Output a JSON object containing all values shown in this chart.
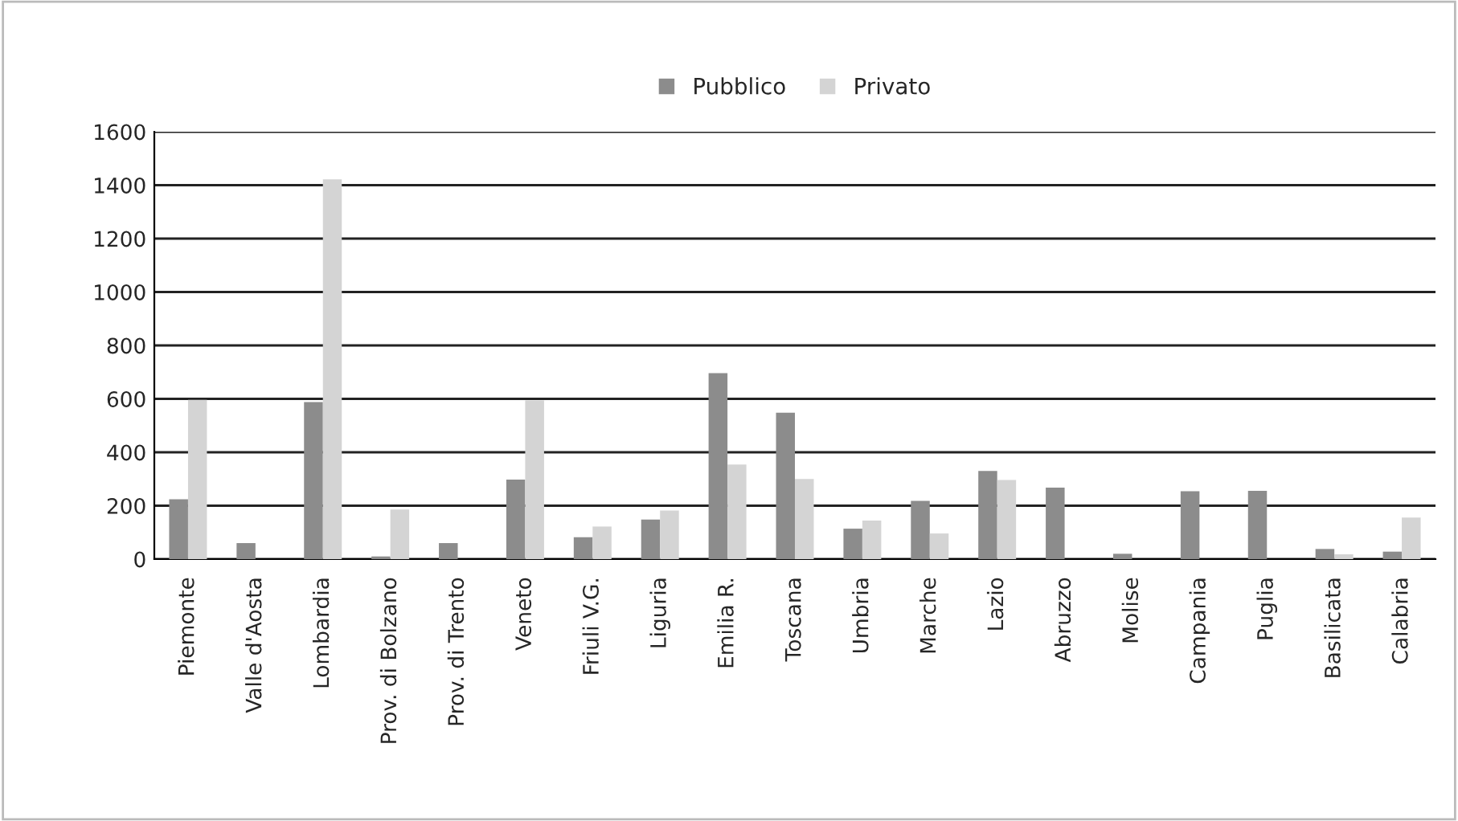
{
  "chart_data": {
    "type": "bar",
    "categories": [
      "Piemonte",
      "Valle d'Aosta",
      "Lombardia",
      "Prov. di Bolzano",
      "Prov. di Trento",
      "Veneto",
      "Friuli V.G.",
      "Liguria",
      "Emilia R.",
      "Toscana",
      "Umbria",
      "Marche",
      "Lazio",
      "Abruzzo",
      "Molise",
      "Campania",
      "Puglia",
      "Basilicata",
      "Calabria"
    ],
    "series": [
      {
        "name": "Pubblico",
        "color": "#8c8c8c",
        "values": [
          224,
          60,
          588,
          10,
          60,
          298,
          82,
          148,
          696,
          548,
          114,
          218,
          330,
          268,
          20,
          254,
          256,
          38,
          28
        ]
      },
      {
        "name": "Privato",
        "color": "#d4d4d4",
        "values": [
          596,
          null,
          1422,
          186,
          null,
          594,
          122,
          182,
          354,
          300,
          144,
          96,
          296,
          null,
          null,
          null,
          null,
          18,
          156
        ]
      }
    ],
    "ylim": [
      0,
      1600
    ],
    "yticks": [
      0,
      200,
      400,
      600,
      800,
      1000,
      1200,
      1400,
      1600
    ],
    "grid": "y",
    "legend": "top"
  }
}
